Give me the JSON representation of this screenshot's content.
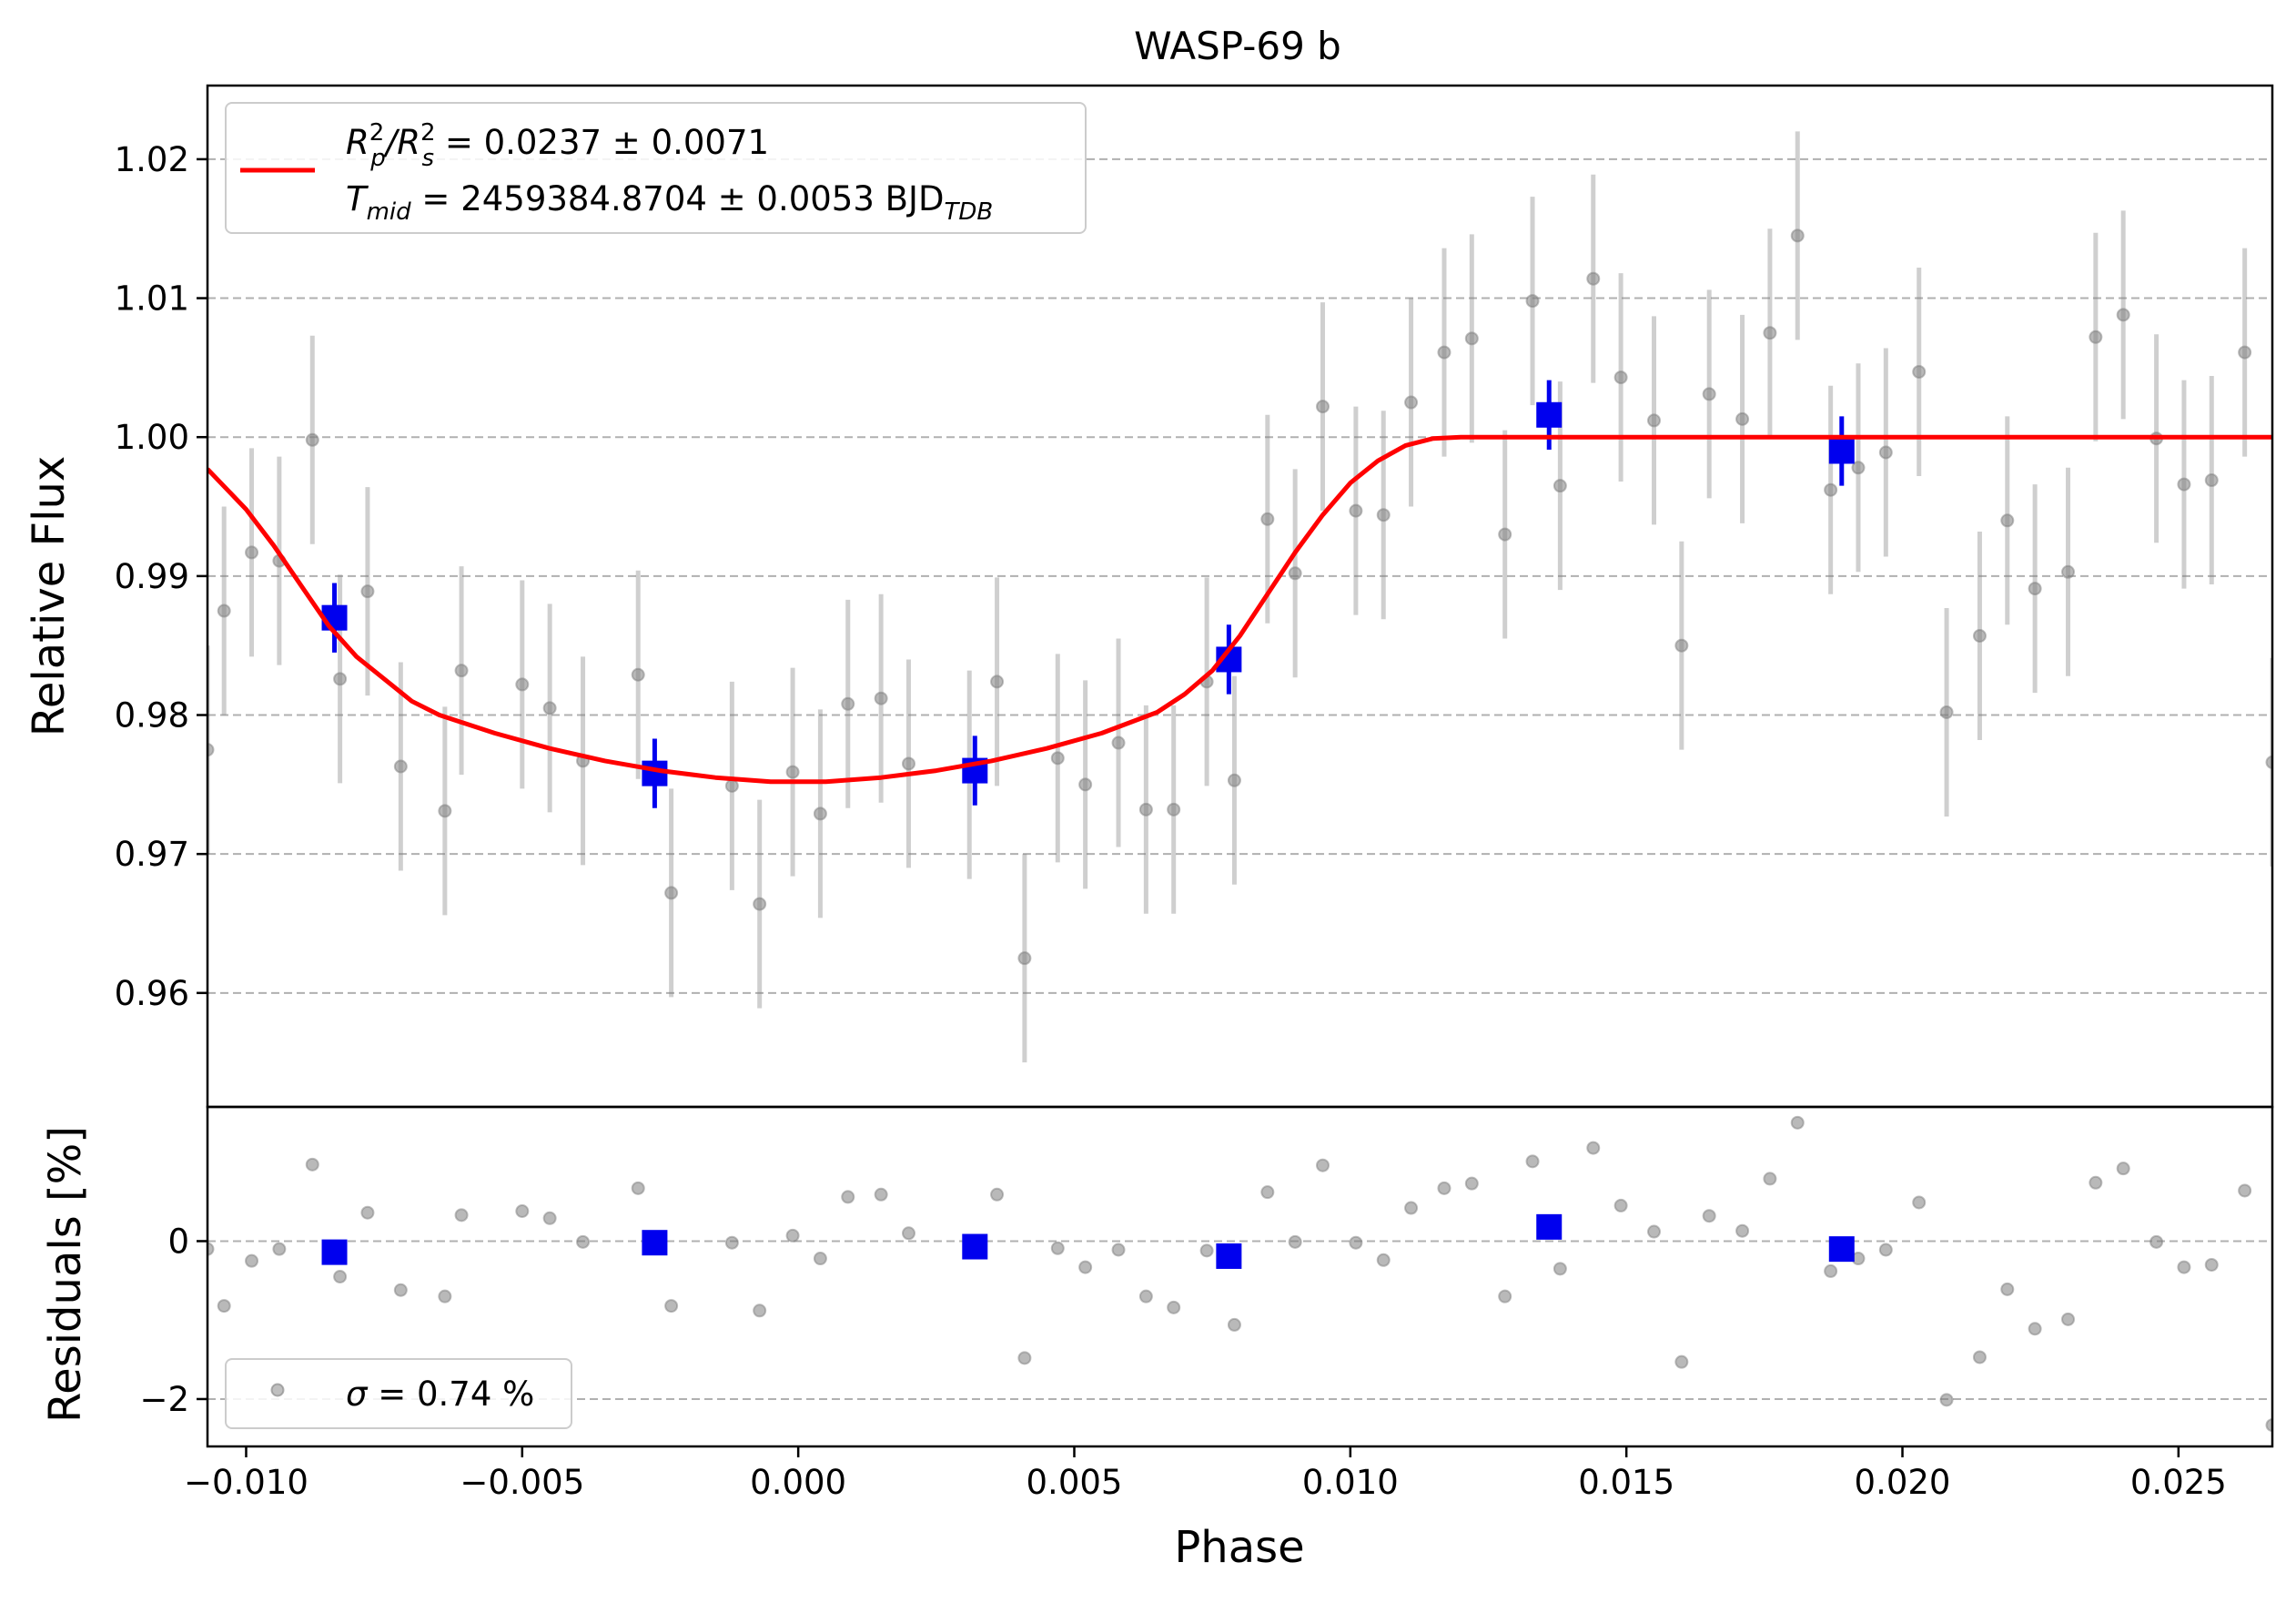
{
  "figure": {
    "title": "WASP-69 b",
    "legend_top": {
      "line1": {
        "base": "R",
        "sub1": "p",
        "sup1": "2",
        "mid": "/R",
        "sub2": "s",
        "sup2": "2",
        "rest": " = 0.0237 ± 0.0071"
      },
      "line2": {
        "base": "T",
        "sub": "mid",
        "rest": " = 2459384.8704 ± 0.0053 BJD",
        "sub2": "TDB"
      }
    },
    "legend_bottom": {
      "sigma": "σ",
      "rest": " = 0.74 %"
    }
  },
  "chart_data": [
    {
      "type": "scatter",
      "panel": "top",
      "title": "WASP-69 b",
      "xlabel": "",
      "ylabel": "Relative Flux",
      "xlim": [
        -0.0107,
        0.0267
      ],
      "ylim": [
        0.9518,
        1.0253
      ],
      "grid": "y-dashed",
      "legend_position": "top-left",
      "yticks": [
        0.96,
        0.97,
        0.98,
        0.99,
        1.0,
        1.01,
        1.02
      ],
      "ytick_labels": [
        "0.96",
        "0.97",
        "0.98",
        "0.99",
        "1.00",
        "1.01",
        "1.02"
      ],
      "series": [
        {
          "kind": "raw",
          "color": "#808080",
          "err": 0.0075,
          "points": [
            [
              -0.0107,
              0.9775
            ],
            [
              -0.0104,
              0.9875
            ],
            [
              -0.0099,
              0.9917
            ],
            [
              -0.0094,
              0.9911
            ],
            [
              -0.0088,
              0.9998
            ],
            [
              -0.0083,
              0.9826
            ],
            [
              -0.0078,
              0.9889
            ],
            [
              -0.0072,
              0.9763
            ],
            [
              -0.0064,
              0.9731
            ],
            [
              -0.0061,
              0.9832
            ],
            [
              -0.005,
              0.9822
            ],
            [
              -0.0045,
              0.9805
            ],
            [
              -0.0039,
              0.9767
            ],
            [
              -0.0029,
              0.9829
            ],
            [
              -0.0023,
              0.9672
            ],
            [
              -0.0012,
              0.9749
            ],
            [
              -0.0007,
              0.9664
            ],
            [
              -0.0001,
              0.9759
            ],
            [
              0.0004,
              0.9729
            ],
            [
              0.0009,
              0.9808
            ],
            [
              0.0015,
              0.9812
            ],
            [
              0.002,
              0.9765
            ],
            [
              0.0031,
              0.9757
            ],
            [
              0.0036,
              0.9824
            ],
            [
              0.0041,
              0.9625
            ],
            [
              0.0047,
              0.9769
            ],
            [
              0.0052,
              0.975
            ],
            [
              0.0058,
              0.978
            ],
            [
              0.0063,
              0.9732
            ],
            [
              0.0068,
              0.9732
            ],
            [
              0.0074,
              0.9824
            ],
            [
              0.0079,
              0.9753
            ],
            [
              0.0085,
              0.9941
            ],
            [
              0.009,
              0.9902
            ],
            [
              0.0095,
              1.0022
            ],
            [
              0.0101,
              0.9947
            ],
            [
              0.0106,
              0.9944
            ],
            [
              0.0111,
              1.0025
            ],
            [
              0.0117,
              1.0061
            ],
            [
              0.0122,
              1.0071
            ],
            [
              0.0128,
              0.993
            ],
            [
              0.0133,
              1.0098
            ],
            [
              0.0138,
              0.9965
            ],
            [
              0.0144,
              1.0114
            ],
            [
              0.0149,
              1.0043
            ],
            [
              0.0155,
              1.0012
            ],
            [
              0.016,
              0.985
            ],
            [
              0.0165,
              1.0031
            ],
            [
              0.0171,
              1.0013
            ],
            [
              0.0176,
              1.0075
            ],
            [
              0.0181,
              1.0145
            ],
            [
              0.0187,
              0.9962
            ],
            [
              0.0192,
              0.9978
            ],
            [
              0.0197,
              0.9989
            ],
            [
              0.0203,
              1.0047
            ],
            [
              0.0208,
              0.9802
            ],
            [
              0.0214,
              0.9857
            ],
            [
              0.0219,
              0.994
            ],
            [
              0.0224,
              0.9891
            ],
            [
              0.023,
              0.9903
            ],
            [
              0.0235,
              1.0072
            ],
            [
              0.024,
              1.0088
            ],
            [
              0.0246,
              0.9999
            ],
            [
              0.0251,
              0.9966
            ],
            [
              0.0256,
              0.9969
            ],
            [
              0.0262,
              1.0061
            ],
            [
              0.0267,
              0.9766
            ]
          ]
        },
        {
          "kind": "binned",
          "color": "#0000ee",
          "err": 0.0025,
          "points": [
            [
              -0.0084,
              0.987
            ],
            [
              -0.0026,
              0.9758
            ],
            [
              0.0032,
              0.976
            ],
            [
              0.0078,
              0.984
            ],
            [
              0.0136,
              1.0016
            ],
            [
              0.0189,
              0.999
            ]
          ]
        },
        {
          "kind": "model",
          "color": "#ff0000",
          "points": [
            [
              -0.0107,
              0.9977
            ],
            [
              -0.01,
              0.9948
            ],
            [
              -0.0095,
              0.9922
            ],
            [
              -0.009,
              0.9893
            ],
            [
              -0.0085,
              0.9864
            ],
            [
              -0.008,
              0.9842
            ],
            [
              -0.0075,
              0.9826
            ],
            [
              -0.007,
              0.981
            ],
            [
              -0.0065,
              0.98
            ],
            [
              -0.0055,
              0.9787
            ],
            [
              -0.0045,
              0.9776
            ],
            [
              -0.0035,
              0.9767
            ],
            [
              -0.0025,
              0.976
            ],
            [
              -0.0015,
              0.9755
            ],
            [
              -0.0005,
              0.9752
            ],
            [
              0.0005,
              0.9752
            ],
            [
              0.0015,
              0.9755
            ],
            [
              0.0025,
              0.976
            ],
            [
              0.0035,
              0.9767
            ],
            [
              0.0045,
              0.9776
            ],
            [
              0.0055,
              0.9787
            ],
            [
              0.0065,
              0.9802
            ],
            [
              0.007,
              0.9815
            ],
            [
              0.0075,
              0.9832
            ],
            [
              0.008,
              0.9857
            ],
            [
              0.0085,
              0.9887
            ],
            [
              0.009,
              0.9917
            ],
            [
              0.0095,
              0.9944
            ],
            [
              0.01,
              0.9967
            ],
            [
              0.0105,
              0.9983
            ],
            [
              0.011,
              0.9994
            ],
            [
              0.0115,
              0.9999
            ],
            [
              0.012,
              1.0
            ],
            [
              0.0267,
              1.0
            ]
          ]
        }
      ]
    },
    {
      "type": "scatter",
      "panel": "bottom",
      "xlabel": "Phase",
      "ylabel": "Residuals [%]",
      "xlim": [
        -0.0107,
        0.0267
      ],
      "ylim": [
        -2.6,
        1.7
      ],
      "grid": "y-dashed",
      "legend_position": "bottom-left",
      "xticks": [
        -0.01,
        -0.005,
        0.0,
        0.005,
        0.01,
        0.015,
        0.02,
        0.025
      ],
      "xtick_labels": [
        "−0.010",
        "−0.005",
        "0.000",
        "0.005",
        "0.010",
        "0.015",
        "0.020",
        "0.025"
      ],
      "yticks": [
        -2,
        0
      ],
      "ytick_labels": [
        "−2",
        "0"
      ],
      "series": [
        {
          "kind": "raw",
          "name": "σ = 0.74 %",
          "color": "#808080",
          "points": [
            [
              -0.0107,
              -0.1
            ],
            [
              -0.0104,
              -0.82
            ],
            [
              -0.0099,
              -0.25
            ],
            [
              -0.0094,
              -0.1
            ],
            [
              -0.0088,
              0.97
            ],
            [
              -0.0083,
              -0.45
            ],
            [
              -0.0078,
              0.36
            ],
            [
              -0.0072,
              -0.62
            ],
            [
              -0.0064,
              -0.7
            ],
            [
              -0.0061,
              0.33
            ],
            [
              -0.005,
              0.38
            ],
            [
              -0.0045,
              0.29
            ],
            [
              -0.0039,
              -0.01
            ],
            [
              -0.0029,
              0.67
            ],
            [
              -0.0023,
              -0.82
            ],
            [
              -0.0012,
              -0.02
            ],
            [
              -0.0007,
              -0.88
            ],
            [
              -0.0001,
              0.07
            ],
            [
              0.0004,
              -0.22
            ],
            [
              0.0009,
              0.56
            ],
            [
              0.0015,
              0.59
            ],
            [
              0.002,
              0.1
            ],
            [
              0.0031,
              -0.02
            ],
            [
              0.0036,
              0.59
            ],
            [
              0.0041,
              -1.48
            ],
            [
              0.0047,
              -0.09
            ],
            [
              0.0052,
              -0.33
            ],
            [
              0.0058,
              -0.11
            ],
            [
              0.0063,
              -0.7
            ],
            [
              0.0068,
              -0.84
            ],
            [
              0.0074,
              -0.12
            ],
            [
              0.0079,
              -1.06
            ],
            [
              0.0085,
              0.62
            ],
            [
              0.009,
              -0.01
            ],
            [
              0.0095,
              0.96
            ],
            [
              0.0101,
              -0.02
            ],
            [
              0.0106,
              -0.24
            ],
            [
              0.0111,
              0.42
            ],
            [
              0.0117,
              0.67
            ],
            [
              0.0122,
              0.73
            ],
            [
              0.0128,
              -0.7
            ],
            [
              0.0133,
              1.01
            ],
            [
              0.0138,
              -0.35
            ],
            [
              0.0144,
              1.18
            ],
            [
              0.0149,
              0.45
            ],
            [
              0.0155,
              0.12
            ],
            [
              0.016,
              -1.53
            ],
            [
              0.0165,
              0.32
            ],
            [
              0.0171,
              0.13
            ],
            [
              0.0176,
              0.79
            ],
            [
              0.0181,
              1.5
            ],
            [
              0.0187,
              -0.38
            ],
            [
              0.0192,
              -0.22
            ],
            [
              0.0197,
              -0.11
            ],
            [
              0.0203,
              0.49
            ],
            [
              0.0208,
              -2.01
            ],
            [
              0.0214,
              -1.47
            ],
            [
              0.0219,
              -0.61
            ],
            [
              0.0224,
              -1.11
            ],
            [
              0.023,
              -0.99
            ],
            [
              0.0235,
              0.74
            ],
            [
              0.024,
              0.92
            ],
            [
              0.0246,
              -0.01
            ],
            [
              0.0251,
              -0.33
            ],
            [
              0.0256,
              -0.3
            ],
            [
              0.0262,
              0.64
            ],
            [
              0.0267,
              -2.33
            ]
          ]
        },
        {
          "kind": "binned",
          "color": "#0000ee",
          "points": [
            [
              -0.0084,
              -0.14
            ],
            [
              -0.0026,
              -0.02
            ],
            [
              0.0032,
              -0.07
            ],
            [
              0.0078,
              -0.19
            ],
            [
              0.0136,
              0.18
            ],
            [
              0.0189,
              -0.1
            ]
          ]
        }
      ]
    }
  ]
}
